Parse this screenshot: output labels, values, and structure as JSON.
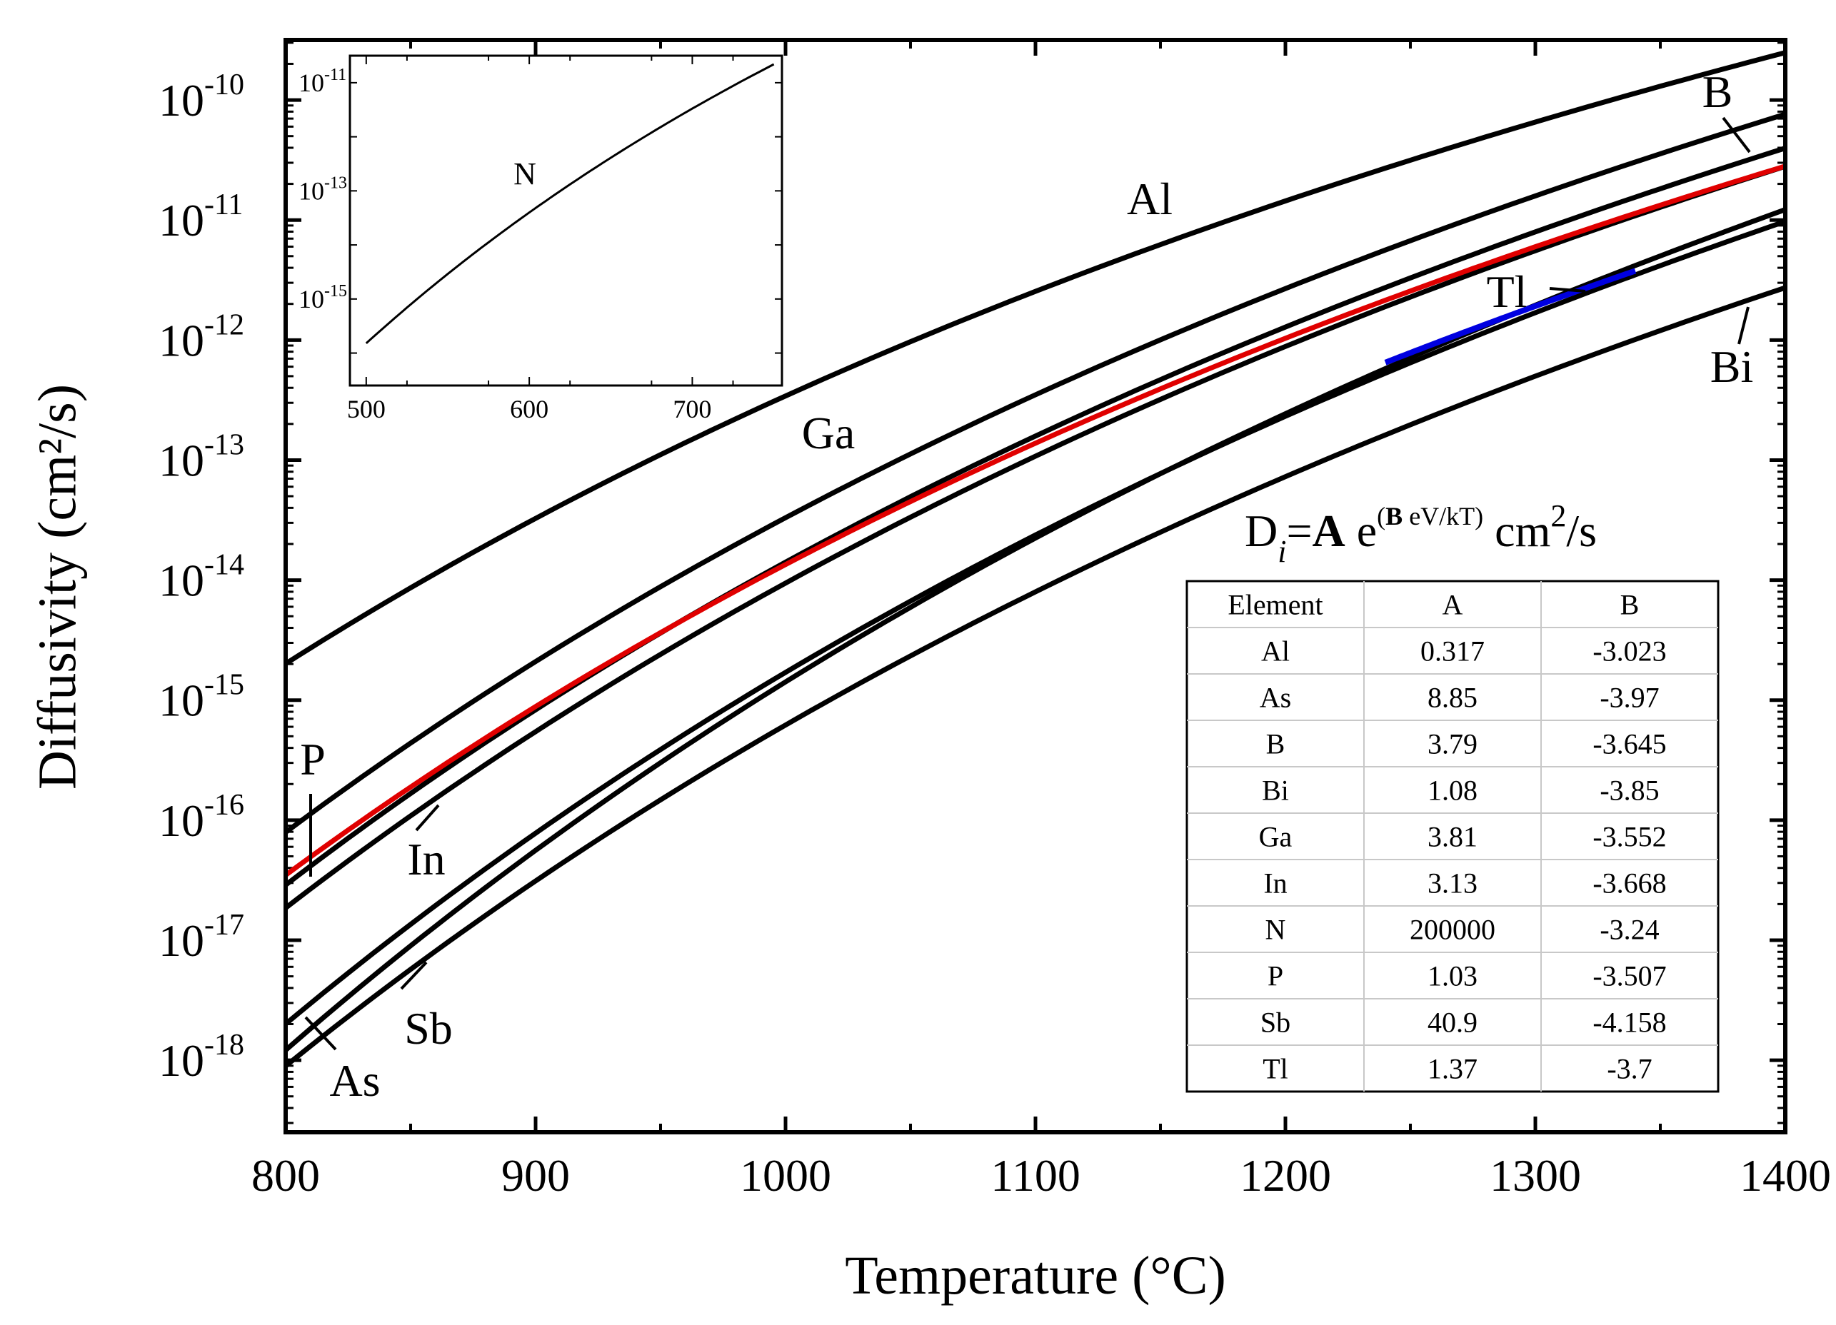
{
  "chart_data": {
    "type": "line",
    "title": "",
    "xlabel": "Temperature (°C)",
    "ylabel": "Diffusivity (cm²/s)",
    "xlim": [
      800,
      1400
    ],
    "ylim_log10": [
      -18.6,
      -9.5
    ],
    "x_ticks": [
      "800",
      "900",
      "1000",
      "1100",
      "1200",
      "1300",
      "1400"
    ],
    "y_ticks": [
      {
        "exp": "-18"
      },
      {
        "exp": "-17"
      },
      {
        "exp": "-16"
      },
      {
        "exp": "-15"
      },
      {
        "exp": "-14"
      },
      {
        "exp": "-13"
      },
      {
        "exp": "-12"
      },
      {
        "exp": "-11"
      },
      {
        "exp": "-10"
      }
    ],
    "y_tick_base": "10",
    "series": [
      {
        "name": "Al",
        "color": "#000000",
        "A": 0.317,
        "B": -3.023,
        "x": [
          800,
          1400
        ]
      },
      {
        "name": "As",
        "color": "#000000",
        "A": 8.85,
        "B": -3.97,
        "x": [
          800,
          1400
        ]
      },
      {
        "name": "B",
        "color": "#000000",
        "A": 3.79,
        "B": -3.645,
        "x": [
          800,
          1400
        ]
      },
      {
        "name": "Bi",
        "color": "#000000",
        "A": 1.08,
        "B": -3.85,
        "x": [
          800,
          1400
        ]
      },
      {
        "name": "Ga",
        "color": "#000000",
        "A": 3.81,
        "B": -3.552,
        "x": [
          800,
          1400
        ]
      },
      {
        "name": "In",
        "color": "#000000",
        "A": 3.13,
        "B": -3.668,
        "x": [
          800,
          1400
        ]
      },
      {
        "name": "P",
        "color": "#e00000",
        "A": 1.03,
        "B": -3.507,
        "x": [
          800,
          1400
        ]
      },
      {
        "name": "Sb",
        "color": "#000000",
        "A": 40.9,
        "B": -4.158,
        "x": [
          800,
          1400
        ]
      },
      {
        "name": "Tl",
        "color": "#0000e0",
        "A": 1.37,
        "B": -3.7,
        "x": [
          1240,
          1340
        ]
      }
    ],
    "labels": [
      "Al",
      "Ga",
      "B",
      "Tl",
      "Bi",
      "P",
      "In",
      "Sb",
      "As"
    ],
    "inset": {
      "label": "N",
      "A": 200000,
      "B": -3.24,
      "xlim": [
        490,
        755
      ],
      "x_range": [
        500,
        750
      ],
      "x_ticks": [
        "500",
        "600",
        "700"
      ],
      "ylim_log10": [
        -16.6,
        -10.5
      ],
      "y_ticks": [
        {
          "exp": "-11"
        },
        {
          "exp": "-13"
        },
        {
          "exp": "-15"
        }
      ],
      "y_tick_base": "10"
    },
    "formula": {
      "d": "D",
      "sub": "i",
      "eq": "=",
      "a": "A",
      "e": " e",
      "paren_open": "(",
      "b": "B",
      "ev": " eV/kT)",
      "unit": " cm",
      "unit_sup": "2",
      "unit_end": "/s"
    },
    "table": {
      "headers": [
        "Element",
        "A",
        "B"
      ],
      "rows": [
        [
          "Al",
          "0.317",
          "-3.023"
        ],
        [
          "As",
          "8.85",
          "-3.97"
        ],
        [
          "B",
          "3.79",
          "-3.645"
        ],
        [
          "Bi",
          "1.08",
          "-3.85"
        ],
        [
          "Ga",
          "3.81",
          "-3.552"
        ],
        [
          "In",
          "3.13",
          "-3.668"
        ],
        [
          "N",
          "200000",
          "-3.24"
        ],
        [
          "P",
          "1.03",
          "-3.507"
        ],
        [
          "Sb",
          "40.9",
          "-4.158"
        ],
        [
          "Tl",
          "1.37",
          "-3.7"
        ]
      ]
    }
  }
}
